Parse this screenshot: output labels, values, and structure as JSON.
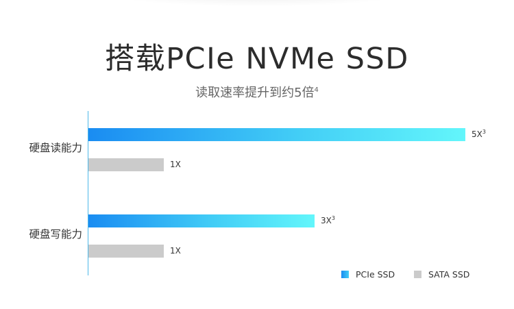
{
  "header": {
    "title": "搭载PCIe NVMe SSD",
    "subtitle": "读取速率提升到约5倍",
    "subtitle_footnote": "4"
  },
  "colors": {
    "pcie_gradient": [
      "#1a8cf2",
      "#63f6fb"
    ],
    "sata": "#cbcbcb",
    "axis": "#4cb8e8"
  },
  "chart_data": {
    "type": "bar",
    "orientation": "horizontal",
    "categories": [
      "硬盘读能力",
      "硬盘写能力"
    ],
    "series": [
      {
        "name": "PCIe SSD",
        "values": [
          5,
          3
        ],
        "labels": [
          "5X",
          "3X"
        ],
        "footnote": "3"
      },
      {
        "name": "SATA SSD",
        "values": [
          1,
          1
        ],
        "labels": [
          "1X",
          "1X"
        ],
        "footnote": ""
      }
    ],
    "xlim": [
      0,
      5
    ],
    "grid": false,
    "legend_position": "bottom-right"
  }
}
